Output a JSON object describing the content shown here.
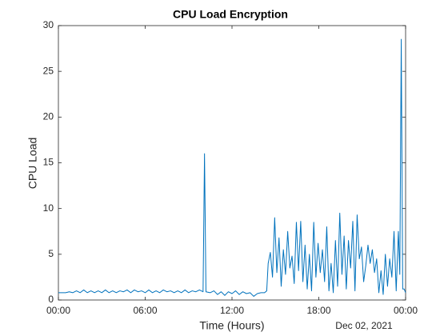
{
  "chart_data": {
    "type": "line",
    "title": "CPU Load Encryption",
    "xlabel": "Time (Hours)",
    "ylabel": "CPU Load",
    "x_secondary_label": "Dec 02, 2021",
    "color": "#0072bd",
    "xlim": [
      0,
      24
    ],
    "xticks": [
      {
        "value": 0,
        "label": "00:00"
      },
      {
        "value": 6,
        "label": "06:00"
      },
      {
        "value": 12,
        "label": "12:00"
      },
      {
        "value": 18,
        "label": "18:00"
      },
      {
        "value": 24,
        "label": "00:00"
      }
    ],
    "ylim": [
      0,
      30
    ],
    "yticks": [
      0,
      5,
      10,
      15,
      20,
      25,
      30
    ],
    "grid": false,
    "x": [
      0,
      0.25,
      0.5,
      0.75,
      1,
      1.25,
      1.5,
      1.75,
      2,
      2.25,
      2.5,
      2.75,
      3,
      3.25,
      3.5,
      3.75,
      4,
      4.25,
      4.5,
      4.75,
      5,
      5.25,
      5.5,
      5.75,
      6,
      6.25,
      6.5,
      6.75,
      7,
      7.25,
      7.5,
      7.75,
      8,
      8.25,
      8.5,
      8.75,
      9,
      9.25,
      9.5,
      9.75,
      10,
      10.1,
      10.2,
      10.5,
      10.75,
      11,
      11.25,
      11.5,
      11.75,
      12,
      12.25,
      12.5,
      12.75,
      13,
      13.25,
      13.5,
      13.75,
      14,
      14.25,
      14.4,
      14.5,
      14.65,
      14.8,
      14.95,
      15.1,
      15.25,
      15.4,
      15.55,
      15.7,
      15.85,
      16,
      16.15,
      16.3,
      16.45,
      16.6,
      16.75,
      16.9,
      17.05,
      17.2,
      17.35,
      17.5,
      17.65,
      17.8,
      17.95,
      18.1,
      18.25,
      18.4,
      18.55,
      18.7,
      18.85,
      19,
      19.15,
      19.3,
      19.45,
      19.6,
      19.75,
      19.9,
      20.05,
      20.2,
      20.35,
      20.5,
      20.65,
      20.8,
      20.95,
      21.1,
      21.25,
      21.4,
      21.55,
      21.7,
      21.85,
      22,
      22.15,
      22.3,
      22.45,
      22.6,
      22.75,
      22.9,
      23.05,
      23.2,
      23.35,
      23.5,
      23.6,
      23.7,
      23.8,
      23.9,
      24
    ],
    "values": [
      0.8,
      0.8,
      0.8,
      0.9,
      0.8,
      1.0,
      0.8,
      1.1,
      0.8,
      1.0,
      0.8,
      1.0,
      0.8,
      1.1,
      0.8,
      1.0,
      0.8,
      1.0,
      0.9,
      1.1,
      0.8,
      1.1,
      0.9,
      1.0,
      0.8,
      1.1,
      0.8,
      1.0,
      0.8,
      1.1,
      0.9,
      1.0,
      0.8,
      1.0,
      0.8,
      1.1,
      0.8,
      1.0,
      0.9,
      1.1,
      0.9,
      16,
      0.9,
      0.8,
      1.0,
      0.6,
      0.9,
      0.5,
      0.9,
      0.7,
      1.0,
      0.6,
      0.9,
      0.7,
      0.8,
      0.4,
      0.7,
      0.8,
      0.8,
      1.0,
      4.0,
      5.2,
      2.5,
      9.0,
      3.0,
      6.8,
      1.5,
      5.5,
      2.8,
      7.5,
      3.5,
      4.8,
      1.8,
      8.5,
      3.2,
      8.6,
      2.0,
      6.0,
      1.2,
      5.0,
      1.0,
      8.5,
      2.5,
      6.2,
      3.0,
      5.5,
      2.0,
      8.0,
      1.0,
      4.0,
      0.8,
      6.5,
      1.5,
      9.5,
      2.8,
      7.0,
      1.2,
      6.5,
      3.5,
      8.6,
      1.0,
      9.3,
      4.5,
      5.8,
      2.0,
      3.8,
      6.0,
      4.0,
      5.5,
      3.0,
      4.5,
      0.8,
      3.2,
      0.6,
      5.0,
      1.5,
      4.5,
      2.5,
      7.5,
      1.0,
      7.5,
      2.8,
      28.5,
      1.2,
      1.2,
      0.8
    ]
  }
}
